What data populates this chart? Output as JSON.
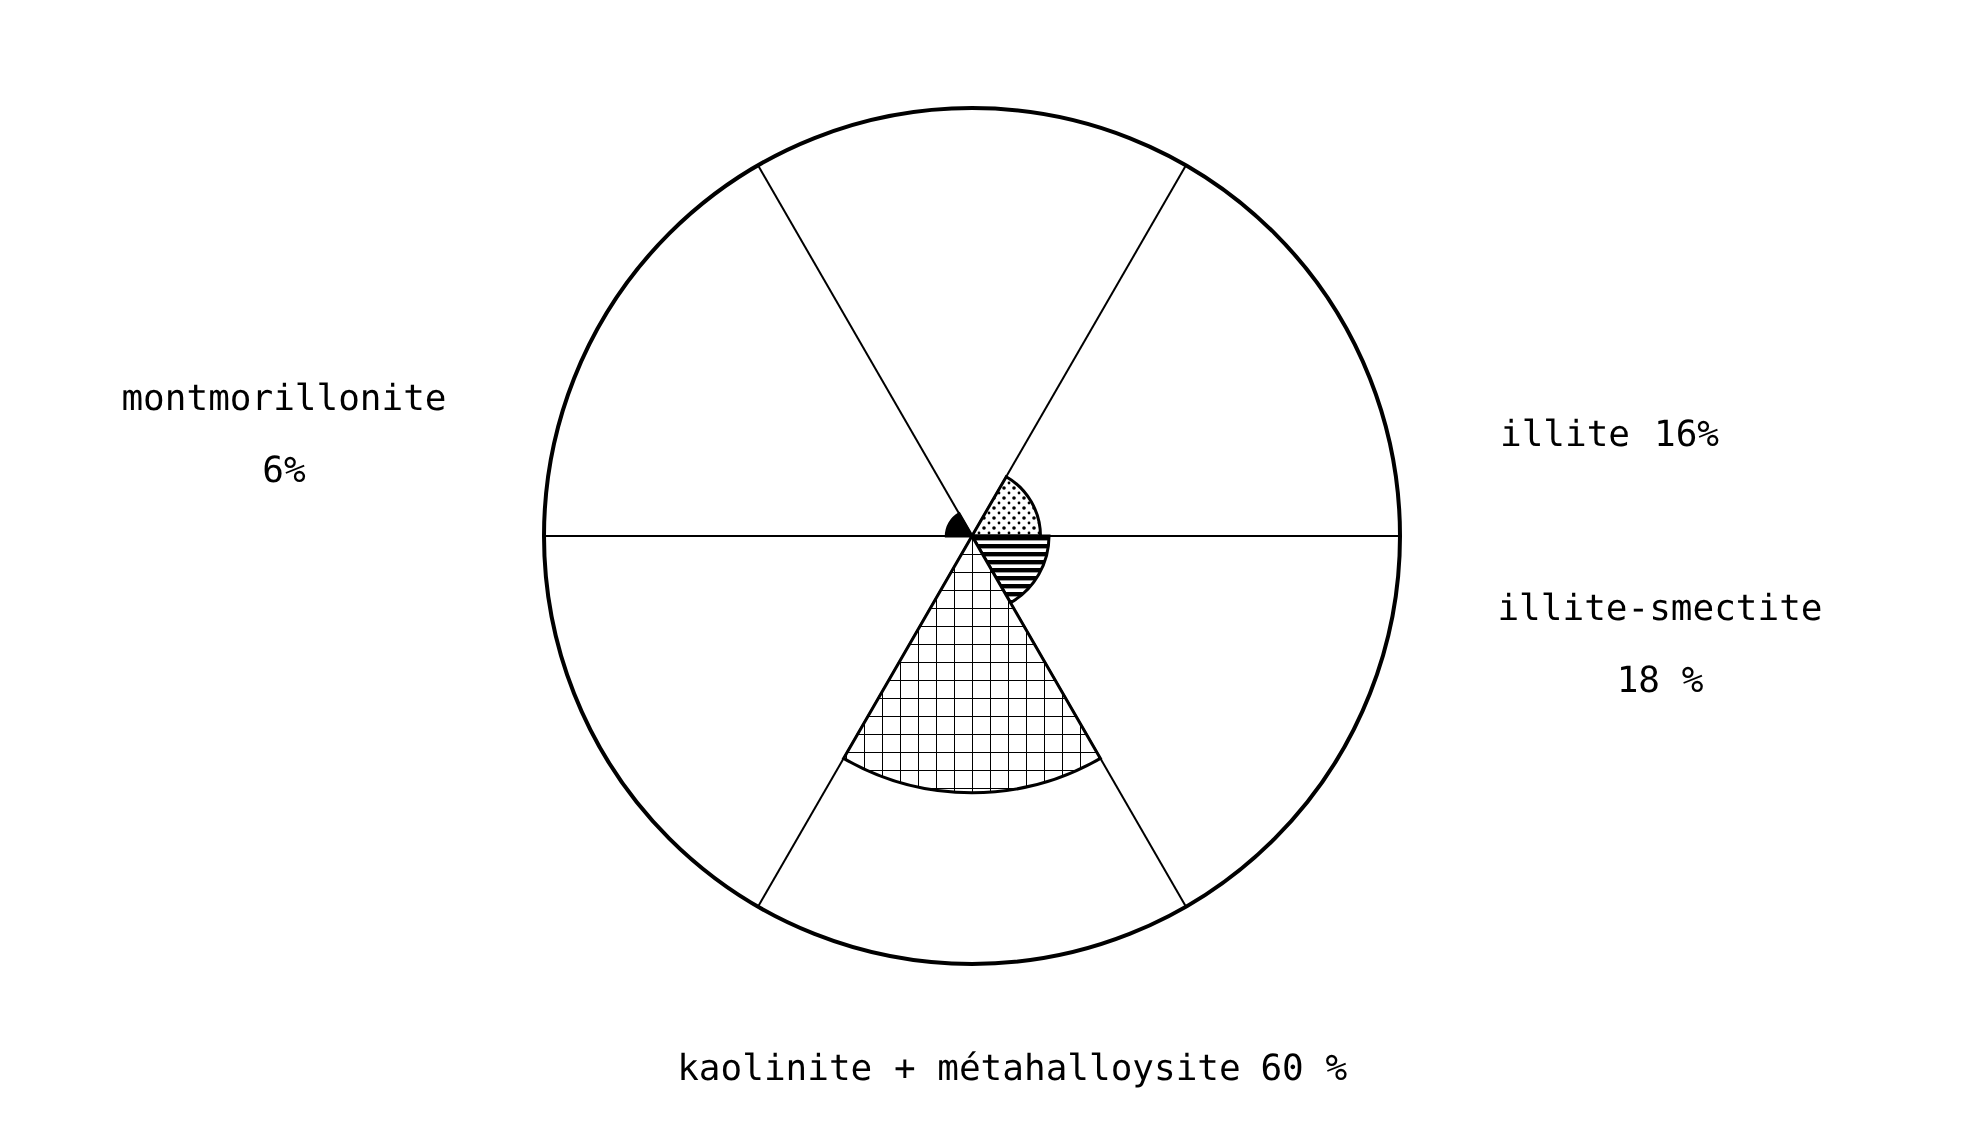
{
  "chart_data": {
    "type": "other",
    "categories": [
      "illite",
      "illite-smectite",
      "kaolinite + métahalloysite",
      "montmorillonite"
    ],
    "values": [
      16,
      18,
      60,
      6
    ],
    "value_labels": [
      "16%",
      "18 %",
      "60 %",
      "6%"
    ],
    "colors": [
      "#000000",
      "#000000",
      "#000000",
      "#000000"
    ]
  }
}
